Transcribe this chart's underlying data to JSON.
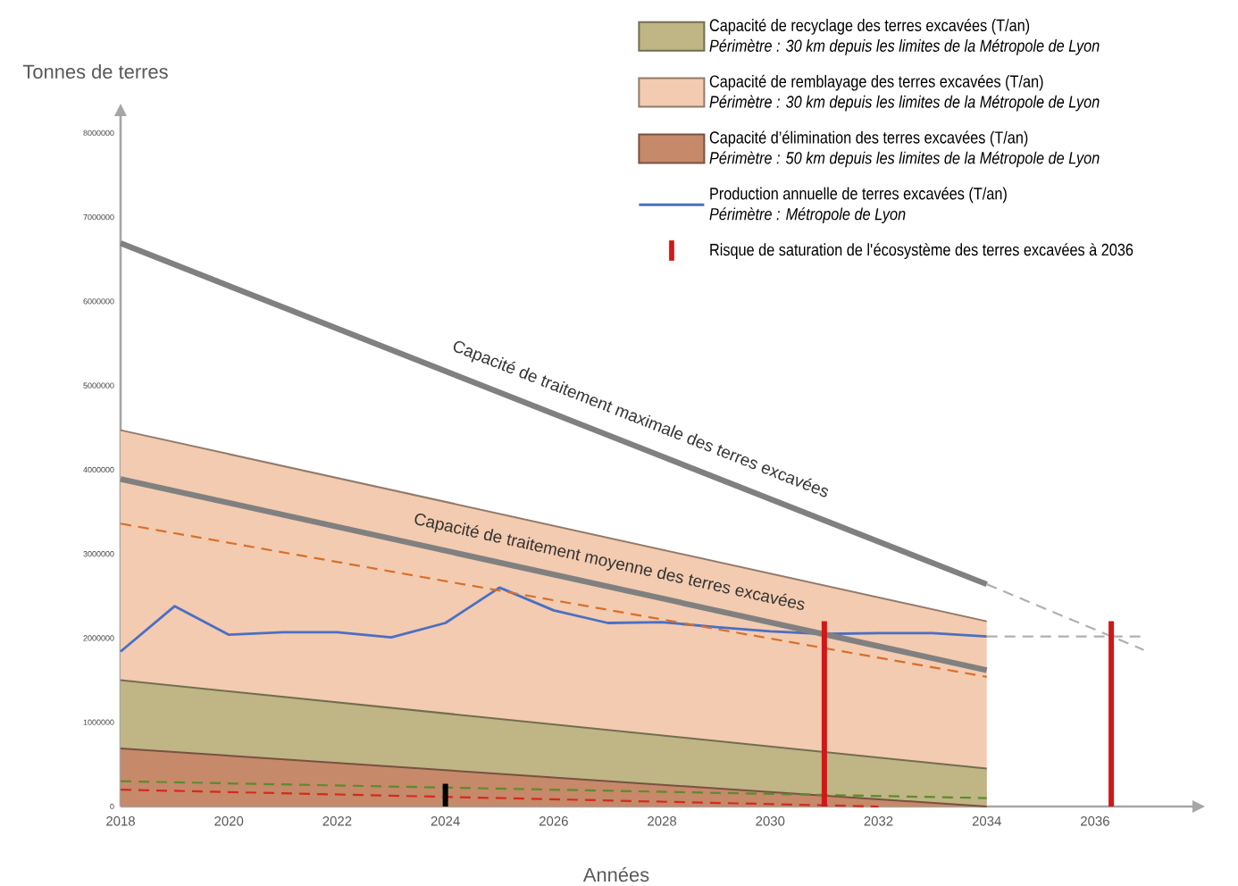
{
  "chart_data": {
    "type": "area",
    "xlabel": "Années",
    "ylabel": "Tonnes de terres",
    "xlim": [
      2018,
      2037.8
    ],
    "ylim": [
      0,
      8200000
    ],
    "xticks": [
      2018,
      2020,
      2022,
      2024,
      2026,
      2028,
      2030,
      2032,
      2034,
      2036
    ],
    "yticks": [
      0,
      1000000,
      2000000,
      3000000,
      4000000,
      5000000,
      6000000,
      7000000,
      8000000
    ],
    "legend": "top right",
    "series": [
      {
        "name": "Capacité de remblayage des terres excavées (T/an)",
        "color": "#f3cbb0",
        "x": [
          2018,
          2034
        ],
        "values": [
          4470000,
          2200000
        ]
      },
      {
        "name": "Capacité de recyclage des terres excavées (T/an)",
        "color": "#bfb585",
        "x": [
          2018,
          2034
        ],
        "values": [
          1500000,
          450000
        ]
      },
      {
        "name": "Capacité d’élimination des terres excavées (T/an)",
        "color": "#c6896a",
        "x": [
          2018,
          2034
        ],
        "values": [
          690000,
          0
        ]
      },
      {
        "name": "Production annuelle de terres excavées (T/an)",
        "type": "line",
        "color": "#4a6fc4",
        "x": [
          2018,
          2019,
          2020,
          2021,
          2022,
          2023,
          2024,
          2025,
          2026,
          2027,
          2028,
          2029,
          2030,
          2031,
          2032,
          2033,
          2034
        ],
        "values": [
          1840000,
          2380000,
          2040000,
          2070000,
          2070000,
          2010000,
          2180000,
          2600000,
          2330000,
          2180000,
          2190000,
          2130000,
          2080000,
          2050000,
          2060000,
          2060000,
          2020000
        ]
      },
      {
        "type": "line",
        "color": "#808080",
        "x": [
          2018,
          2034
        ],
        "values": [
          6690000,
          2640000
        ]
      },
      {
        "type": "line",
        "color": "#808080",
        "x": [
          2018,
          2034
        ],
        "values": [
          3890000,
          1620000
        ]
      },
      {
        "type": "line",
        "line_style": "dashed",
        "color": "#d86f2a",
        "x": [
          2018,
          2034
        ],
        "values": [
          3360000,
          1540000
        ]
      },
      {
        "type": "line",
        "line_style": "dashed",
        "color": "#5b8c2e",
        "x": [
          2018,
          2034
        ],
        "values": [
          300000,
          100000
        ]
      },
      {
        "type": "line",
        "line_style": "dashed",
        "color": "#d42a1e",
        "x": [
          2018,
          2032
        ],
        "values": [
          200000,
          0
        ]
      },
      {
        "type": "line",
        "line_style": "dashed",
        "color": "#b0b0b0",
        "x": [
          2034,
          2036.9
        ],
        "values": [
          2640000,
          1860000
        ]
      },
      {
        "type": "line",
        "line_style": "dashed",
        "color": "#b0b0b0",
        "x": [
          2034,
          2036.9
        ],
        "values": [
          2020000,
          2020000
        ]
      },
      {
        "name": "Risque de saturation de l'écosystème des terres excavées à 2036",
        "type": "bar",
        "color": "#d01818",
        "x": [
          2031,
          2036.3
        ],
        "values": [
          2200000,
          2200000
        ]
      },
      {
        "type": "bar",
        "color": "#000000",
        "x": [
          2024
        ],
        "values": [
          270000
        ]
      }
    ],
    "annotations": [
      "Périmètre : 30 km depuis les limites de  la Métropole de Lyon",
      "Périmètre : 30 km depuis les limites de  la Métropole de Lyon",
      "Périmètre : 50 km depuis les limites de  la Métropole de Lyon",
      "Périmètre : Métropole de Lyon",
      "Capacité de traitement maximale des terres excavées",
      "Capacité de traitement moyenne des terres excavées"
    ]
  }
}
